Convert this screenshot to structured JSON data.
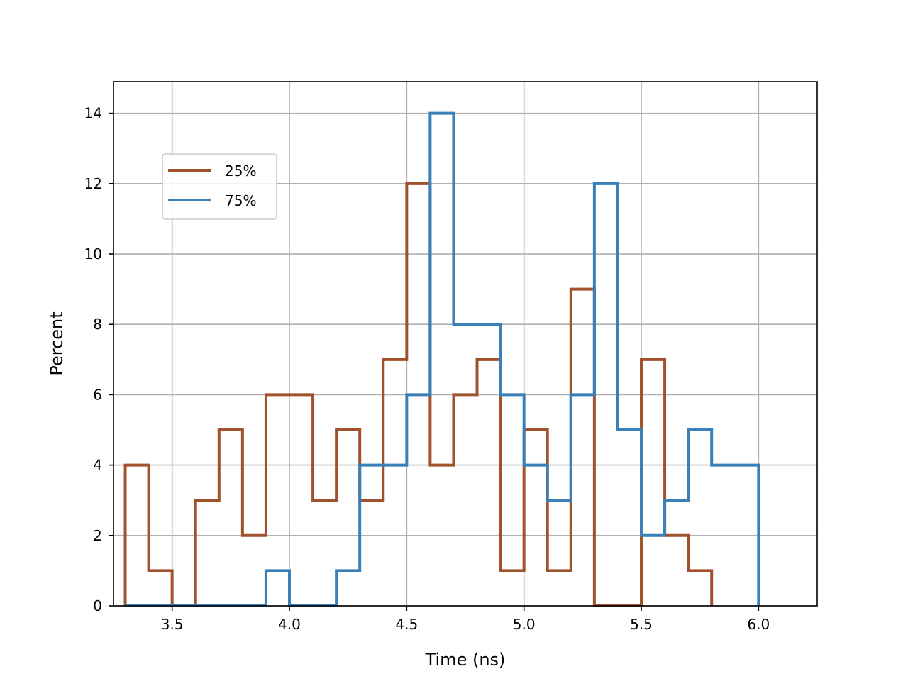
{
  "chart_data": {
    "type": "histogram",
    "xlabel": "Time (ns)",
    "ylabel": "Percent",
    "xlim": [
      3.25,
      6.25
    ],
    "ylim": [
      0,
      14.9
    ],
    "x_ticks": [
      "3.5",
      "4.0",
      "4.5",
      "5.0",
      "5.5",
      "6.0"
    ],
    "x_tick_values": [
      3.5,
      4.0,
      4.5,
      5.0,
      5.5,
      6.0
    ],
    "y_ticks": [
      "0",
      "2",
      "4",
      "6",
      "8",
      "10",
      "12",
      "14"
    ],
    "y_tick_values": [
      0,
      2,
      4,
      6,
      8,
      10,
      12,
      14
    ],
    "grid": true,
    "legend_position": "upper-left",
    "bin_width": 0.1,
    "series": [
      {
        "name": "25%",
        "color": "#a0522d",
        "bin_start": 3.3,
        "values": [
          4,
          1,
          0,
          3,
          5,
          2,
          6,
          6,
          3,
          5,
          3,
          7,
          12,
          4,
          6,
          7,
          1,
          5,
          1,
          9,
          0,
          0,
          7,
          2,
          1
        ]
      },
      {
        "name": "75%",
        "color": "#3a7fb8",
        "bin_start": 3.3,
        "values": [
          0,
          0,
          0,
          0,
          0,
          0,
          1,
          0,
          0,
          1,
          4,
          4,
          6,
          14,
          8,
          8,
          6,
          4,
          3,
          6,
          12,
          5,
          2,
          3,
          5,
          4,
          4
        ]
      }
    ]
  }
}
